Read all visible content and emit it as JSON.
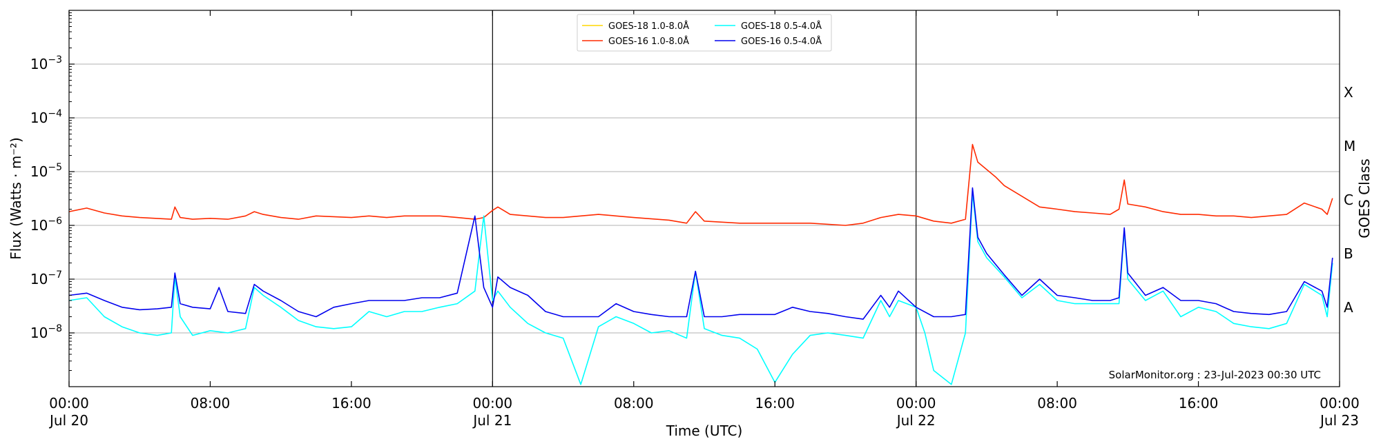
{
  "chart_data": {
    "type": "line",
    "xlabel": "Time (UTC)",
    "ylabel": "Flux (Watts · m⁻²)",
    "ylabel_right": "GOES Class",
    "credit": "SolarMonitor.org : 23-Jul-2023 00:30 UTC",
    "x_unit": "hours since 00:00 Jul 20",
    "xlim": [
      0,
      72
    ],
    "ylim": [
      1e-09,
      0.01
    ],
    "yscale": "log",
    "grid": "horizontal",
    "legend_position": "top-center",
    "x_ticks": [
      {
        "hours": 0,
        "time": "00:00",
        "date": "Jul 20"
      },
      {
        "hours": 8,
        "time": "08:00",
        "date": ""
      },
      {
        "hours": 16,
        "time": "16:00",
        "date": ""
      },
      {
        "hours": 24,
        "time": "00:00",
        "date": "Jul 21"
      },
      {
        "hours": 32,
        "time": "08:00",
        "date": ""
      },
      {
        "hours": 40,
        "time": "16:00",
        "date": ""
      },
      {
        "hours": 48,
        "time": "00:00",
        "date": "Jul 22"
      },
      {
        "hours": 56,
        "time": "08:00",
        "date": ""
      },
      {
        "hours": 64,
        "time": "16:00",
        "date": ""
      },
      {
        "hours": 72,
        "time": "00:00",
        "date": "Jul 23"
      }
    ],
    "y_ticks": [
      {
        "value": 1e-08,
        "base": "10",
        "exp": "−8"
      },
      {
        "value": 1e-07,
        "base": "10",
        "exp": "−7"
      },
      {
        "value": 1e-06,
        "base": "10",
        "exp": "−6"
      },
      {
        "value": 1e-05,
        "base": "10",
        "exp": "−5"
      },
      {
        "value": 0.0001,
        "base": "10",
        "exp": "−4"
      },
      {
        "value": 0.001,
        "base": "10",
        "exp": "−3"
      }
    ],
    "day_boundaries": [
      24,
      48
    ],
    "goes_classes": [
      {
        "label": "A",
        "value": 3e-08
      },
      {
        "label": "B",
        "value": 3e-07
      },
      {
        "label": "C",
        "value": 3e-06
      },
      {
        "label": "M",
        "value": 3e-05
      },
      {
        "label": "X",
        "value": 0.0003
      }
    ],
    "series": [
      {
        "name": "GOES-18 1.0-8.0Å",
        "color": "#ffd700",
        "x": [],
        "y": []
      },
      {
        "name": "GOES-16 1.0-8.0Å",
        "color": "#ff2a00",
        "x": [
          0,
          1,
          2,
          3,
          4,
          5.8,
          6,
          6.3,
          7,
          8,
          9,
          10,
          10.5,
          11,
          12,
          13,
          14,
          16,
          17,
          18,
          19,
          20,
          21,
          22,
          23,
          23.5,
          24,
          24.3,
          25,
          26,
          27,
          28,
          30,
          31,
          32,
          34,
          35,
          35.5,
          36,
          38,
          40,
          42,
          44,
          45,
          46,
          46.5,
          47,
          48,
          49,
          50,
          50.8,
          51.2,
          51.5,
          52.5,
          53,
          55,
          56,
          57,
          58,
          59,
          59.5,
          59.8,
          60,
          61,
          62,
          63,
          64,
          65,
          66,
          67,
          68,
          69,
          70,
          71,
          71.3,
          71.6
        ],
        "y": [
          1.8e-06,
          2.1e-06,
          1.7e-06,
          1.5e-06,
          1.4e-06,
          1.3e-06,
          2.2e-06,
          1.4e-06,
          1.3e-06,
          1.35e-06,
          1.3e-06,
          1.5e-06,
          1.8e-06,
          1.6e-06,
          1.4e-06,
          1.3e-06,
          1.5e-06,
          1.4e-06,
          1.5e-06,
          1.4e-06,
          1.5e-06,
          1.5e-06,
          1.5e-06,
          1.4e-06,
          1.3e-06,
          1.4e-06,
          1.9e-06,
          2.2e-06,
          1.6e-06,
          1.5e-06,
          1.4e-06,
          1.4e-06,
          1.6e-06,
          1.5e-06,
          1.4e-06,
          1.25e-06,
          1.1e-06,
          1.8e-06,
          1.2e-06,
          1.1e-06,
          1.1e-06,
          1.1e-06,
          1e-06,
          1.1e-06,
          1.4e-06,
          1.5e-06,
          1.6e-06,
          1.5e-06,
          1.2e-06,
          1.1e-06,
          1.3e-06,
          3.2e-05,
          1.5e-05,
          8e-06,
          5.5e-06,
          2.2e-06,
          2e-06,
          1.8e-06,
          1.7e-06,
          1.6e-06,
          2e-06,
          7e-06,
          2.5e-06,
          2.2e-06,
          1.8e-06,
          1.6e-06,
          1.6e-06,
          1.5e-06,
          1.5e-06,
          1.4e-06,
          1.5e-06,
          1.6e-06,
          2.6e-06,
          2e-06,
          1.6e-06,
          3.2e-06
        ]
      },
      {
        "name": "GOES-18 0.5-4.0Å",
        "color": "#00ffff",
        "x": [
          0,
          1,
          2,
          3,
          4,
          5,
          5.8,
          6,
          6.3,
          7,
          8,
          9,
          10,
          10.5,
          11,
          12,
          13,
          14,
          15,
          16,
          17,
          18,
          19,
          20,
          21,
          22,
          23,
          23.5,
          24,
          24.3,
          25,
          26,
          27,
          28,
          29,
          30,
          31,
          32,
          33,
          34,
          35,
          35.5,
          36,
          37,
          38,
          39,
          40,
          41,
          42,
          43,
          44,
          45,
          46,
          46.5,
          47,
          48,
          48.5,
          49,
          50,
          50.8,
          51.2,
          51.5,
          52,
          53,
          54,
          55,
          56,
          57,
          58,
          59,
          59.5,
          59.8,
          60,
          61,
          62,
          63,
          64,
          65,
          66,
          67,
          68,
          69,
          70,
          71,
          71.3,
          71.6
        ],
        "y": [
          4e-08,
          4.5e-08,
          2e-08,
          1.3e-08,
          1e-08,
          9e-09,
          1e-08,
          1.1e-07,
          2e-08,
          9e-09,
          1.1e-08,
          1e-08,
          1.2e-08,
          7e-08,
          5e-08,
          3e-08,
          1.7e-08,
          1.3e-08,
          1.2e-08,
          1.3e-08,
          2.5e-08,
          2e-08,
          2.5e-08,
          2.5e-08,
          3e-08,
          3.5e-08,
          6e-08,
          1.5e-06,
          4e-08,
          6e-08,
          3e-08,
          1.5e-08,
          1e-08,
          8e-09,
          1.1e-09,
          1.3e-08,
          2e-08,
          1.5e-08,
          1e-08,
          1.1e-08,
          8e-09,
          1.4e-07,
          1.2e-08,
          9e-09,
          8e-09,
          5e-09,
          1.2e-09,
          4e-09,
          9e-09,
          1e-08,
          9e-09,
          8e-09,
          4e-08,
          2e-08,
          4e-08,
          3e-08,
          1e-08,
          2e-09,
          1.1e-09,
          1e-08,
          4e-06,
          5e-07,
          2.5e-07,
          1.1e-07,
          4.5e-08,
          8e-08,
          4e-08,
          3.5e-08,
          3.5e-08,
          3.5e-08,
          3.5e-08,
          8e-07,
          1e-07,
          4e-08,
          6e-08,
          2e-08,
          3e-08,
          2.5e-08,
          1.5e-08,
          1.3e-08,
          1.2e-08,
          1.5e-08,
          8e-08,
          5e-08,
          2e-08,
          2e-07
        ]
      },
      {
        "name": "GOES-16 0.5-4.0Å",
        "color": "#0000ee",
        "x": [
          0,
          1,
          2,
          3,
          4,
          5,
          5.8,
          6,
          6.3,
          7,
          8,
          8.5,
          9,
          10,
          10.5,
          11,
          12,
          13,
          14,
          15,
          16,
          17,
          18,
          19,
          20,
          21,
          22,
          23,
          23.5,
          24,
          24.3,
          25,
          26,
          27,
          28,
          29,
          30,
          31,
          32,
          33,
          34,
          35,
          35.5,
          36,
          37,
          38,
          39,
          40,
          41,
          42,
          43,
          44,
          45,
          46,
          46.5,
          47,
          48,
          49,
          50,
          50.8,
          51.2,
          51.5,
          52,
          53,
          54,
          55,
          56,
          57,
          58,
          59,
          59.5,
          59.8,
          60,
          61,
          62,
          63,
          64,
          65,
          66,
          67,
          68,
          69,
          70,
          71,
          71.3,
          71.6
        ],
        "y": [
          5e-08,
          5.5e-08,
          4e-08,
          3e-08,
          2.7e-08,
          2.8e-08,
          3e-08,
          1.3e-07,
          3.5e-08,
          3e-08,
          2.8e-08,
          7e-08,
          2.5e-08,
          2.3e-08,
          8e-08,
          6e-08,
          4e-08,
          2.5e-08,
          2e-08,
          3e-08,
          3.5e-08,
          4e-08,
          4e-08,
          4e-08,
          4.5e-08,
          4.5e-08,
          5.5e-08,
          1.5e-06,
          7e-08,
          3e-08,
          1.1e-07,
          7e-08,
          5e-08,
          2.5e-08,
          2e-08,
          2e-08,
          2e-08,
          3.5e-08,
          2.5e-08,
          2.2e-08,
          2e-08,
          2e-08,
          1.4e-07,
          2e-08,
          2e-08,
          2.2e-08,
          2.2e-08,
          2.2e-08,
          3e-08,
          2.5e-08,
          2.3e-08,
          2e-08,
          1.8e-08,
          5e-08,
          3e-08,
          6e-08,
          3e-08,
          2e-08,
          2e-08,
          2.2e-08,
          5e-06,
          6e-07,
          3e-07,
          1.2e-07,
          5e-08,
          1e-07,
          5e-08,
          4.5e-08,
          4e-08,
          4e-08,
          4.5e-08,
          9e-07,
          1.3e-07,
          5e-08,
          7e-08,
          4e-08,
          4e-08,
          3.5e-08,
          2.5e-08,
          2.3e-08,
          2.2e-08,
          2.5e-08,
          9e-08,
          6e-08,
          3e-08,
          2.5e-07
        ]
      }
    ]
  }
}
